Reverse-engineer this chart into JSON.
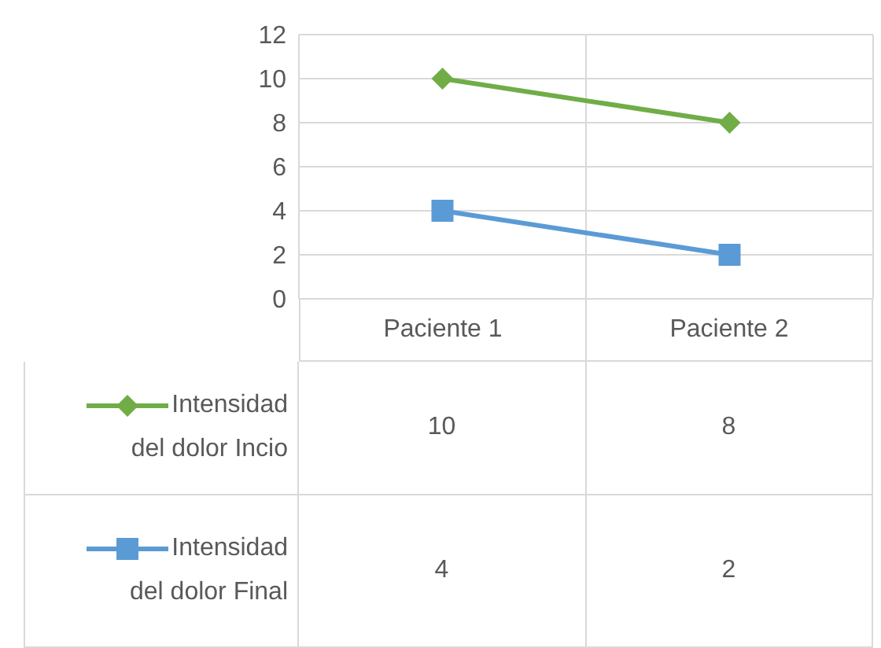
{
  "chart_data": {
    "type": "line",
    "categories": [
      "Paciente 1",
      "Paciente 2"
    ],
    "series": [
      {
        "name": "Intensidad del dolor Incio",
        "color": "#70ad47",
        "marker": "diamond",
        "values": [
          10,
          8
        ]
      },
      {
        "name": "Intensidad del dolor Final",
        "color": "#5b9bd5",
        "marker": "square",
        "values": [
          4,
          2
        ]
      }
    ],
    "ylim": [
      0,
      12
    ],
    "yticks": [
      0,
      2,
      4,
      6,
      8,
      10,
      12
    ],
    "grid": true,
    "legend": "bottom left",
    "data_labels": true
  }
}
